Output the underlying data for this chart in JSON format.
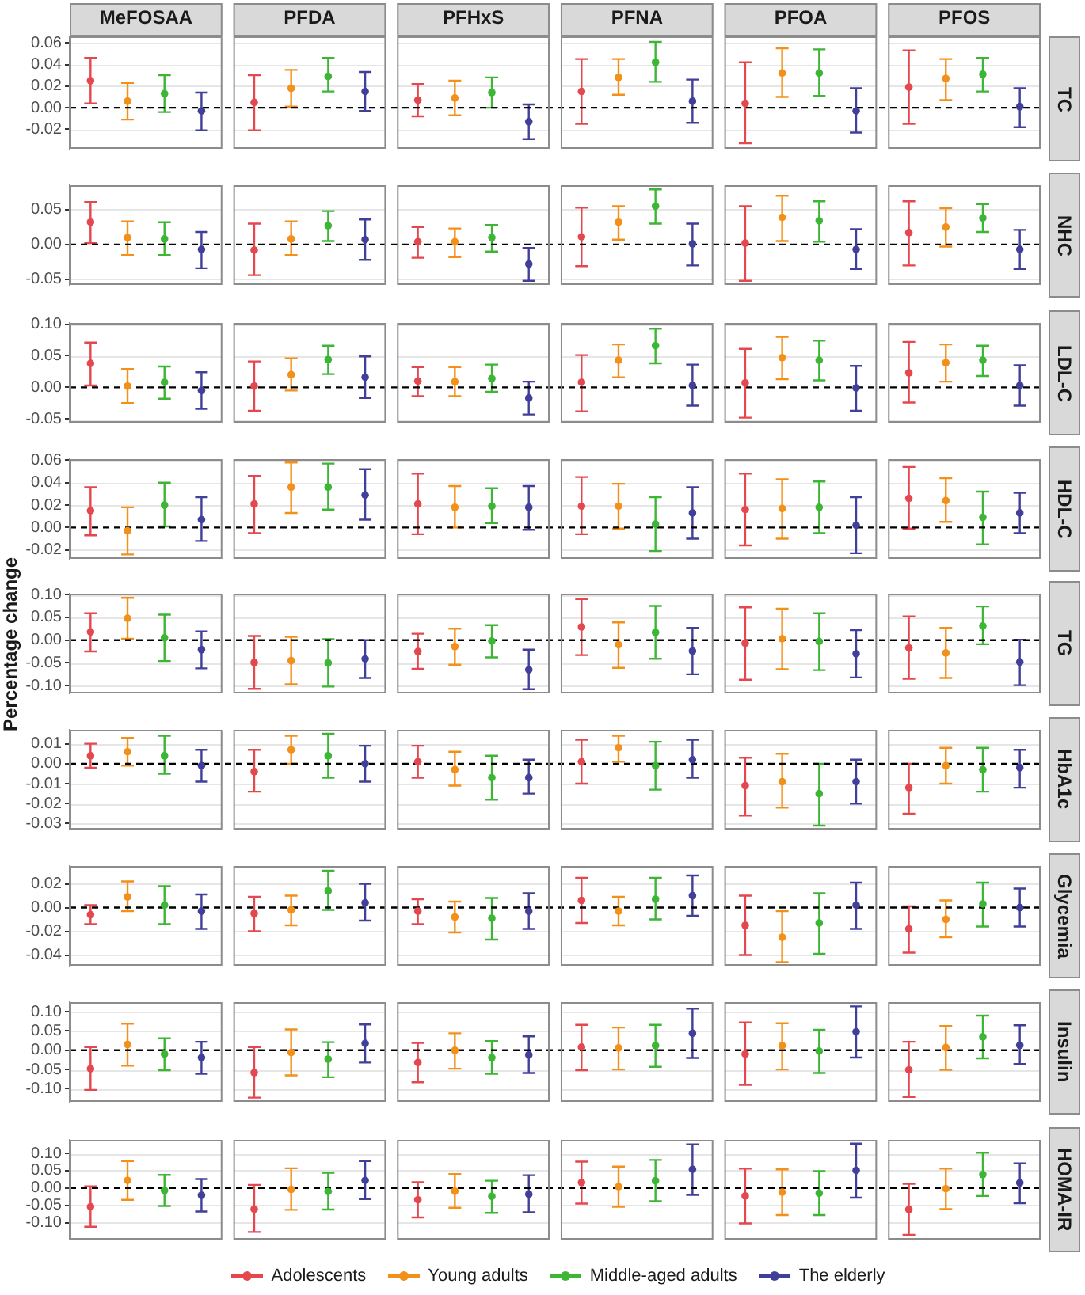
{
  "chart_data": [
    {
      "type": "scatter",
      "y2label": "TC",
      "categories": [
        "MeFOSAA",
        "PFDA",
        "PFHxS",
        "PFNA",
        "PFOA",
        "PFOS"
      ],
      "marker": "circle",
      "grid": "y",
      "ylim": [
        -0.038,
        0.066
      ],
      "yticks": [
        -0.02,
        {
          "value": 0,
          "label": "0.00"
        },
        0.02,
        0.04,
        0.06
      ],
      "ref_lines": [
        {
          "axis": "y",
          "value": 0,
          "color": "#000000",
          "line_style": "dashed"
        }
      ],
      "series": [
        {
          "color": "#e5474f",
          "values": [
            0.025,
            0.005,
            0.007,
            0.015,
            0.004,
            0.019
          ],
          "errors": [
            [
              0.004,
              0.046
            ],
            [
              -0.021,
              0.03
            ],
            [
              -0.008,
              0.022
            ],
            [
              -0.015,
              0.045
            ],
            [
              -0.033,
              0.042
            ],
            [
              -0.015,
              0.053
            ]
          ]
        },
        {
          "color": "#f39019",
          "values": [
            0.006,
            0.018,
            0.009,
            0.028,
            0.032,
            0.027
          ],
          "errors": [
            [
              -0.011,
              0.023
            ],
            [
              0.001,
              0.035
            ],
            [
              -0.007,
              0.025
            ],
            [
              0.012,
              0.045
            ],
            [
              0.01,
              0.055
            ],
            [
              0.007,
              0.045
            ]
          ]
        },
        {
          "color": "#3db535",
          "values": [
            0.013,
            0.029,
            0.014,
            0.042,
            0.032,
            0.031
          ],
          "errors": [
            [
              -0.004,
              0.03
            ],
            [
              0.015,
              0.046
            ],
            [
              0.0,
              0.028
            ],
            [
              0.024,
              0.061
            ],
            [
              0.011,
              0.054
            ],
            [
              0.015,
              0.046
            ]
          ]
        },
        {
          "color": "#403f99",
          "values": [
            -0.003,
            0.015,
            -0.013,
            0.006,
            -0.003,
            0.001
          ],
          "errors": [
            [
              -0.021,
              0.014
            ],
            [
              -0.003,
              0.033
            ],
            [
              -0.029,
              0.003
            ],
            [
              -0.014,
              0.026
            ],
            [
              -0.023,
              0.018
            ],
            [
              -0.018,
              0.018
            ]
          ]
        }
      ]
    },
    {
      "type": "scatter",
      "y2label": "NHC",
      "categories": [
        null,
        null,
        null,
        null,
        null,
        null
      ],
      "tick_labels": "y",
      "marker": "circle",
      "grid": "y",
      "ylim": [
        -0.058,
        0.085
      ],
      "yticks": [
        -0.05,
        {
          "value": 0,
          "label": "0.00"
        },
        0.05
      ],
      "ref_lines": [
        {
          "axis": "y",
          "value": 0,
          "color": "#000000",
          "line_style": "dashed"
        }
      ],
      "series": [
        {
          "color": "#e5474f",
          "values": [
            0.032,
            -0.008,
            0.004,
            0.011,
            0.002,
            0.017
          ],
          "errors": [
            [
              0.002,
              0.061
            ],
            [
              -0.044,
              0.03
            ],
            [
              -0.019,
              0.025
            ],
            [
              -0.031,
              0.053
            ],
            [
              -0.052,
              0.055
            ],
            [
              -0.03,
              0.062
            ]
          ]
        },
        {
          "color": "#f39019",
          "values": [
            0.01,
            0.008,
            0.004,
            0.032,
            0.039,
            0.025
          ],
          "errors": [
            [
              -0.015,
              0.033
            ],
            [
              -0.015,
              0.033
            ],
            [
              -0.018,
              0.023
            ],
            [
              0.007,
              0.055
            ],
            [
              0.005,
              0.07
            ],
            [
              -0.003,
              0.052
            ]
          ]
        },
        {
          "color": "#3db535",
          "values": [
            0.008,
            0.027,
            0.01,
            0.055,
            0.034,
            0.038
          ],
          "errors": [
            [
              -0.015,
              0.032
            ],
            [
              0.005,
              0.048
            ],
            [
              -0.01,
              0.028
            ],
            [
              0.03,
              0.079
            ],
            [
              0.004,
              0.062
            ],
            [
              0.018,
              0.058
            ]
          ]
        },
        {
          "color": "#403f99",
          "values": [
            -0.007,
            0.007,
            -0.028,
            0.001,
            -0.007,
            -0.007
          ],
          "errors": [
            [
              -0.034,
              0.018
            ],
            [
              -0.022,
              0.036
            ],
            [
              -0.052,
              -0.005
            ],
            [
              -0.03,
              0.03
            ],
            [
              -0.035,
              0.022
            ],
            [
              -0.035,
              0.021
            ]
          ]
        }
      ]
    },
    {
      "type": "scatter",
      "y2label": "LDL-C",
      "categories": [
        null,
        null,
        null,
        null,
        null,
        null
      ],
      "tick_labels": "y",
      "marker": "circle",
      "grid": "y",
      "ylim": [
        -0.056,
        0.102
      ],
      "yticks": [
        -0.05,
        {
          "value": 0,
          "label": "0.00"
        },
        0.05,
        {
          "value": 0.1,
          "label": "0.10"
        }
      ],
      "ref_lines": [
        {
          "axis": "y",
          "value": 0,
          "color": "#000000",
          "line_style": "dashed"
        }
      ],
      "series": [
        {
          "color": "#e5474f",
          "values": [
            0.038,
            0.002,
            0.01,
            0.008,
            0.007,
            0.023
          ],
          "errors": [
            [
              0.003,
              0.071
            ],
            [
              -0.037,
              0.041
            ],
            [
              -0.014,
              0.032
            ],
            [
              -0.038,
              0.051
            ],
            [
              -0.048,
              0.061
            ],
            [
              -0.024,
              0.072
            ]
          ]
        },
        {
          "color": "#f39019",
          "values": [
            0.002,
            0.02,
            0.009,
            0.043,
            0.047,
            0.039
          ],
          "errors": [
            [
              -0.025,
              0.029
            ],
            [
              -0.005,
              0.046
            ],
            [
              -0.014,
              0.032
            ],
            [
              0.016,
              0.068
            ],
            [
              0.013,
              0.08
            ],
            [
              0.009,
              0.068
            ]
          ]
        },
        {
          "color": "#3db535",
          "values": [
            0.008,
            0.044,
            0.014,
            0.066,
            0.043,
            0.043
          ],
          "errors": [
            [
              -0.018,
              0.033
            ],
            [
              0.021,
              0.066
            ],
            [
              -0.007,
              0.036
            ],
            [
              0.038,
              0.093
            ],
            [
              0.011,
              0.074
            ],
            [
              0.018,
              0.066
            ]
          ]
        },
        {
          "color": "#403f99",
          "values": [
            -0.005,
            0.016,
            -0.017,
            0.003,
            -0.001,
            0.003
          ],
          "errors": [
            [
              -0.034,
              0.024
            ],
            [
              -0.017,
              0.049
            ],
            [
              -0.043,
              0.009
            ],
            [
              -0.029,
              0.036
            ],
            [
              -0.037,
              0.034
            ],
            [
              -0.029,
              0.035
            ]
          ]
        }
      ]
    },
    {
      "type": "scatter",
      "y2label": "HDL-C",
      "categories": [
        null,
        null,
        null,
        null,
        null,
        null
      ],
      "tick_labels": "y",
      "marker": "circle",
      "grid": "y",
      "ylim": [
        -0.028,
        0.061
      ],
      "yticks": [
        -0.02,
        {
          "value": 0,
          "label": "0.00"
        },
        0.02,
        0.04,
        0.06
      ],
      "ref_lines": [
        {
          "axis": "y",
          "value": 0,
          "color": "#000000",
          "line_style": "dashed"
        }
      ],
      "series": [
        {
          "color": "#e5474f",
          "values": [
            0.015,
            0.021,
            0.021,
            0.019,
            0.016,
            0.026
          ],
          "errors": [
            [
              -0.007,
              0.036
            ],
            [
              -0.005,
              0.046
            ],
            [
              -0.006,
              0.048
            ],
            [
              -0.006,
              0.045
            ],
            [
              -0.016,
              0.048
            ],
            [
              -0.001,
              0.054
            ]
          ]
        },
        {
          "color": "#f39019",
          "values": [
            -0.003,
            0.036,
            0.018,
            0.019,
            0.017,
            0.024
          ],
          "errors": [
            [
              -0.024,
              0.018
            ],
            [
              0.013,
              0.058
            ],
            [
              0.0,
              0.037
            ],
            [
              -0.001,
              0.039
            ],
            [
              -0.01,
              0.043
            ],
            [
              0.005,
              0.044
            ]
          ]
        },
        {
          "color": "#3db535",
          "values": [
            0.02,
            0.036,
            0.019,
            0.003,
            0.018,
            0.009
          ],
          "errors": [
            [
              0.001,
              0.04
            ],
            [
              0.016,
              0.057
            ],
            [
              0.004,
              0.035
            ],
            [
              -0.021,
              0.027
            ],
            [
              -0.005,
              0.041
            ],
            [
              -0.015,
              0.032
            ]
          ]
        },
        {
          "color": "#403f99",
          "values": [
            0.007,
            0.029,
            0.018,
            0.013,
            0.002,
            0.013
          ],
          "errors": [
            [
              -0.012,
              0.027
            ],
            [
              0.007,
              0.052
            ],
            [
              -0.002,
              0.037
            ],
            [
              -0.01,
              0.036
            ],
            [
              -0.023,
              0.027
            ],
            [
              -0.005,
              0.031
            ]
          ]
        }
      ]
    },
    {
      "type": "scatter",
      "ylabel": "Percentage change",
      "y2label": "TG",
      "categories": [
        null,
        null,
        null,
        null,
        null,
        null
      ],
      "tick_labels": "y",
      "marker": "circle",
      "grid": "y",
      "ylim": [
        -0.117,
        0.102
      ],
      "yticks": [
        {
          "value": -0.1,
          "label": "-0.10"
        },
        -0.05,
        {
          "value": 0,
          "label": "0.00"
        },
        0.05,
        {
          "value": 0.1,
          "label": "0.10"
        }
      ],
      "ref_lines": [
        {
          "axis": "y",
          "value": 0,
          "color": "#000000",
          "line_style": "dashed"
        }
      ],
      "series": [
        {
          "color": "#e5474f",
          "values": [
            0.018,
            -0.049,
            -0.025,
            0.029,
            -0.007,
            -0.017
          ],
          "errors": [
            [
              -0.025,
              0.059
            ],
            [
              -0.107,
              0.009
            ],
            [
              -0.063,
              0.014
            ],
            [
              -0.033,
              0.09
            ],
            [
              -0.087,
              0.072
            ],
            [
              -0.085,
              0.052
            ]
          ]
        },
        {
          "color": "#f39019",
          "values": [
            0.048,
            -0.045,
            -0.014,
            -0.01,
            0.003,
            -0.028
          ],
          "errors": [
            [
              0.003,
              0.093
            ],
            [
              -0.097,
              0.007
            ],
            [
              -0.054,
              0.025
            ],
            [
              -0.061,
              0.039
            ],
            [
              -0.064,
              0.069
            ],
            [
              -0.083,
              0.027
            ]
          ]
        },
        {
          "color": "#3db535",
          "values": [
            0.005,
            -0.05,
            -0.002,
            0.017,
            -0.003,
            0.031
          ],
          "errors": [
            [
              -0.046,
              0.056
            ],
            [
              -0.102,
              0.002
            ],
            [
              -0.038,
              0.033
            ],
            [
              -0.041,
              0.075
            ],
            [
              -0.066,
              0.059
            ],
            [
              -0.009,
              0.074
            ]
          ]
        },
        {
          "color": "#403f99",
          "values": [
            -0.021,
            -0.041,
            -0.065,
            -0.024,
            -0.03,
            -0.048
          ],
          "errors": [
            [
              -0.062,
              0.019
            ],
            [
              -0.083,
              0.0
            ],
            [
              -0.108,
              -0.021
            ],
            [
              -0.075,
              0.027
            ],
            [
              -0.082,
              0.022
            ],
            [
              -0.099,
              0.001
            ]
          ]
        }
      ]
    },
    {
      "type": "scatter",
      "y2label": "HbA1c",
      "categories": [
        null,
        null,
        null,
        null,
        null,
        null
      ],
      "tick_labels": "y",
      "marker": "circle",
      "grid": "y",
      "ylim": [
        -0.033,
        0.017
      ],
      "yticks": [
        -0.03,
        -0.02,
        -0.01,
        {
          "value": 0,
          "label": "0.00"
        },
        0.01
      ],
      "ref_lines": [
        {
          "axis": "y",
          "value": 0,
          "color": "#000000",
          "line_style": "dashed"
        }
      ],
      "series": [
        {
          "color": "#e5474f",
          "values": [
            0.004,
            -0.004,
            0.001,
            0.001,
            -0.011,
            -0.012
          ],
          "errors": [
            [
              -0.002,
              0.01
            ],
            [
              -0.014,
              0.007
            ],
            [
              -0.007,
              0.009
            ],
            [
              -0.01,
              0.012
            ],
            [
              -0.026,
              0.003
            ],
            [
              -0.025,
              0.0
            ]
          ]
        },
        {
          "color": "#f39019",
          "values": [
            0.006,
            0.007,
            -0.003,
            0.008,
            -0.009,
            -0.001
          ],
          "errors": [
            [
              -0.001,
              0.013
            ],
            [
              0.0,
              0.014
            ],
            [
              -0.011,
              0.006
            ],
            [
              0.001,
              0.014
            ],
            [
              -0.022,
              0.005
            ],
            [
              -0.01,
              0.008
            ]
          ]
        },
        {
          "color": "#3db535",
          "values": [
            0.004,
            0.004,
            -0.007,
            -0.001,
            -0.015,
            -0.003
          ],
          "errors": [
            [
              -0.005,
              0.014
            ],
            [
              -0.007,
              0.015
            ],
            [
              -0.018,
              0.004
            ],
            [
              -0.013,
              0.011
            ],
            [
              -0.031,
              0.0
            ],
            [
              -0.014,
              0.008
            ]
          ]
        },
        {
          "color": "#403f99",
          "values": [
            -0.001,
            0.0,
            -0.007,
            0.002,
            -0.009,
            -0.002
          ],
          "errors": [
            [
              -0.009,
              0.007
            ],
            [
              -0.009,
              0.009
            ],
            [
              -0.015,
              0.002
            ],
            [
              -0.007,
              0.012
            ],
            [
              -0.02,
              0.002
            ],
            [
              -0.012,
              0.007
            ]
          ]
        }
      ]
    },
    {
      "type": "scatter",
      "y2label": "Glycemia",
      "categories": [
        null,
        null,
        null,
        null,
        null,
        null
      ],
      "tick_labels": "y",
      "marker": "circle",
      "grid": "y",
      "ylim": [
        -0.049,
        0.035
      ],
      "yticks": [
        -0.04,
        -0.02,
        {
          "value": 0,
          "label": "0.00"
        },
        0.02
      ],
      "ref_lines": [
        {
          "axis": "y",
          "value": 0,
          "color": "#000000",
          "line_style": "dashed"
        }
      ],
      "series": [
        {
          "color": "#e5474f",
          "values": [
            -0.006,
            -0.005,
            -0.003,
            0.006,
            -0.015,
            -0.018
          ],
          "errors": [
            [
              -0.014,
              0.002
            ],
            [
              -0.02,
              0.009
            ],
            [
              -0.014,
              0.007
            ],
            [
              -0.013,
              0.025
            ],
            [
              -0.04,
              0.01
            ],
            [
              -0.038,
              0.001
            ]
          ]
        },
        {
          "color": "#f39019",
          "values": [
            0.009,
            -0.002,
            -0.008,
            -0.003,
            -0.025,
            -0.01
          ],
          "errors": [
            [
              -0.003,
              0.022
            ],
            [
              -0.015,
              0.01
            ],
            [
              -0.021,
              0.005
            ],
            [
              -0.015,
              0.009
            ],
            [
              -0.046,
              -0.003
            ],
            [
              -0.025,
              0.006
            ]
          ]
        },
        {
          "color": "#3db535",
          "values": [
            0.002,
            0.014,
            -0.009,
            0.007,
            -0.013,
            0.003
          ],
          "errors": [
            [
              -0.014,
              0.018
            ],
            [
              -0.002,
              0.031
            ],
            [
              -0.027,
              0.008
            ],
            [
              -0.01,
              0.025
            ],
            [
              -0.039,
              0.012
            ],
            [
              -0.016,
              0.021
            ]
          ]
        },
        {
          "color": "#403f99",
          "values": [
            -0.003,
            0.004,
            -0.003,
            0.01,
            0.002,
            0.0
          ],
          "errors": [
            [
              -0.018,
              0.011
            ],
            [
              -0.011,
              0.02
            ],
            [
              -0.018,
              0.012
            ],
            [
              -0.007,
              0.027
            ],
            [
              -0.018,
              0.021
            ],
            [
              -0.016,
              0.016
            ]
          ]
        }
      ]
    },
    {
      "type": "scatter",
      "y2label": "Insulin",
      "categories": [
        null,
        null,
        null,
        null,
        null,
        null
      ],
      "tick_labels": "y",
      "marker": "circle",
      "grid": "y",
      "ylim": [
        -0.134,
        0.125
      ],
      "yticks": [
        {
          "value": -0.1,
          "label": "-0.10"
        },
        -0.05,
        {
          "value": 0,
          "label": "0.00"
        },
        0.05,
        {
          "value": 0.1,
          "label": "0.10"
        }
      ],
      "ref_lines": [
        {
          "axis": "y",
          "value": 0,
          "color": "#000000",
          "line_style": "dashed"
        }
      ],
      "series": [
        {
          "color": "#e5474f",
          "values": [
            -0.048,
            -0.058,
            -0.032,
            0.008,
            -0.01,
            -0.051
          ],
          "errors": [
            [
              -0.103,
              0.008
            ],
            [
              -0.123,
              0.008
            ],
            [
              -0.083,
              0.019
            ],
            [
              -0.052,
              0.066
            ],
            [
              -0.09,
              0.072
            ],
            [
              -0.121,
              0.022
            ]
          ]
        },
        {
          "color": "#f39019",
          "values": [
            0.015,
            -0.006,
            0.0,
            0.006,
            0.012,
            0.007
          ],
          "errors": [
            [
              -0.04,
              0.069
            ],
            [
              -0.065,
              0.054
            ],
            [
              -0.048,
              0.044
            ],
            [
              -0.05,
              0.059
            ],
            [
              -0.05,
              0.07
            ],
            [
              -0.051,
              0.063
            ]
          ]
        },
        {
          "color": "#3db535",
          "values": [
            -0.01,
            -0.023,
            -0.019,
            0.012,
            -0.002,
            0.035
          ],
          "errors": [
            [
              -0.052,
              0.031
            ],
            [
              -0.07,
              0.021
            ],
            [
              -0.061,
              0.024
            ],
            [
              -0.043,
              0.066
            ],
            [
              -0.059,
              0.053
            ],
            [
              -0.021,
              0.09
            ]
          ]
        },
        {
          "color": "#403f99",
          "values": [
            -0.019,
            0.018,
            -0.012,
            0.044,
            0.048,
            0.013
          ],
          "errors": [
            [
              -0.061,
              0.022
            ],
            [
              -0.032,
              0.067
            ],
            [
              -0.059,
              0.036
            ],
            [
              -0.02,
              0.108
            ],
            [
              -0.019,
              0.114
            ],
            [
              -0.036,
              0.065
            ]
          ]
        }
      ]
    },
    {
      "type": "scatter",
      "y2label": "HOMA-IR",
      "legend": "bottom",
      "categories": [
        null,
        null,
        null,
        null,
        null,
        null
      ],
      "tick_labels": "y",
      "marker": "circle",
      "grid": "y",
      "ylim": [
        -0.149,
        0.139
      ],
      "yticks": [
        {
          "value": -0.1,
          "label": "-0.10"
        },
        -0.05,
        {
          "value": 0,
          "label": "0.00"
        },
        0.05,
        {
          "value": 0.1,
          "label": "0.10"
        }
      ],
      "ref_lines": [
        {
          "axis": "y",
          "value": 0,
          "color": "#000000",
          "line_style": "dashed"
        }
      ],
      "series": [
        {
          "name": "Adolescents",
          "color": "#e5474f",
          "values": [
            -0.054,
            -0.061,
            -0.034,
            0.016,
            -0.023,
            -0.062
          ],
          "errors": [
            [
              -0.112,
              0.005
            ],
            [
              -0.127,
              0.009
            ],
            [
              -0.085,
              0.017
            ],
            [
              -0.045,
              0.076
            ],
            [
              -0.102,
              0.056
            ],
            [
              -0.135,
              0.012
            ]
          ]
        },
        {
          "name": "Young adults",
          "color": "#f39019",
          "values": [
            0.022,
            -0.004,
            -0.009,
            0.004,
            -0.012,
            -0.002
          ],
          "errors": [
            [
              -0.034,
              0.078
            ],
            [
              -0.063,
              0.057
            ],
            [
              -0.057,
              0.04
            ],
            [
              -0.054,
              0.062
            ],
            [
              -0.078,
              0.054
            ],
            [
              -0.061,
              0.056
            ]
          ]
        },
        {
          "name": "Middle-aged adults",
          "color": "#3db535",
          "values": [
            -0.007,
            -0.01,
            -0.024,
            0.021,
            -0.015,
            0.039
          ],
          "errors": [
            [
              -0.052,
              0.038
            ],
            [
              -0.062,
              0.044
            ],
            [
              -0.072,
              0.021
            ],
            [
              -0.038,
              0.081
            ],
            [
              -0.078,
              0.049
            ],
            [
              -0.023,
              0.102
            ]
          ]
        },
        {
          "name": "The elderly",
          "color": "#403f99",
          "values": [
            -0.021,
            0.022,
            -0.018,
            0.054,
            0.051,
            0.015
          ],
          "errors": [
            [
              -0.068,
              0.026
            ],
            [
              -0.032,
              0.078
            ],
            [
              -0.07,
              0.037
            ],
            [
              -0.02,
              0.126
            ],
            [
              -0.028,
              0.128
            ],
            [
              -0.044,
              0.071
            ]
          ]
        }
      ]
    }
  ]
}
